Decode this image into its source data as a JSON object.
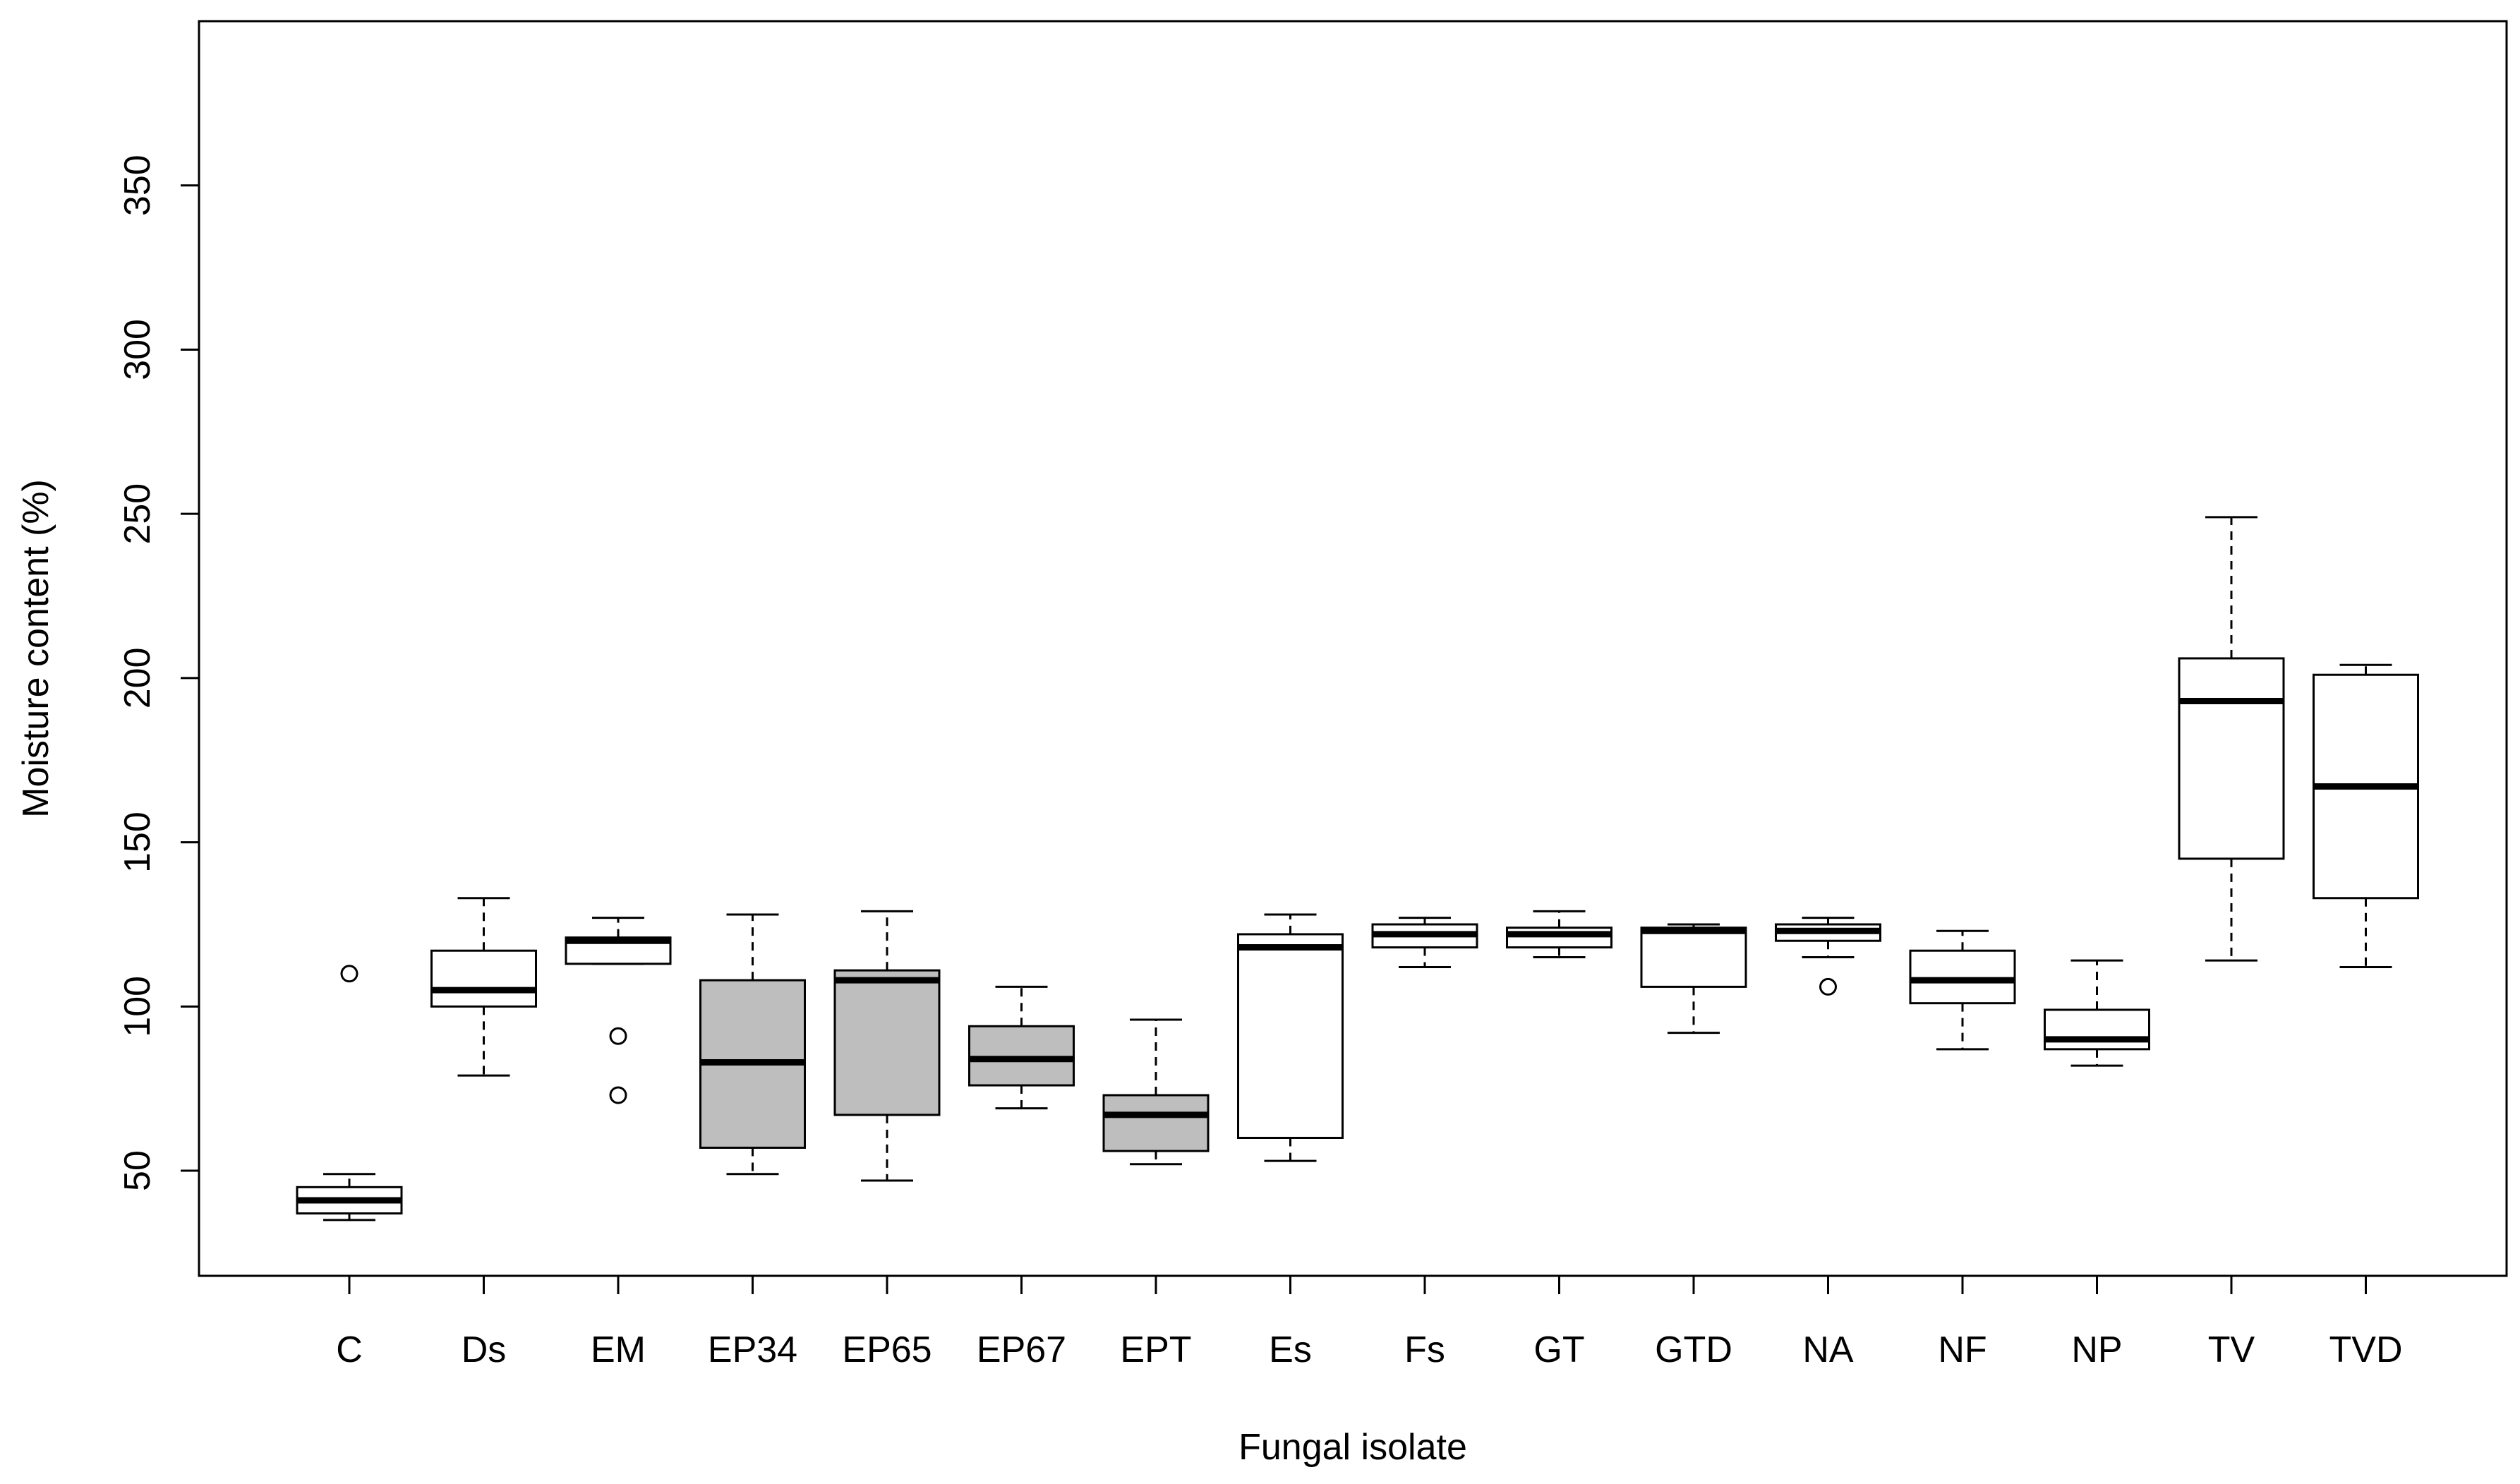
{
  "chart_data": {
    "type": "boxplot",
    "title": "",
    "xlabel": "Fungal isolate",
    "ylabel": "Moisture content (%)",
    "ylim": [
      18,
      400
    ],
    "yticks": [
      50,
      100,
      150,
      200,
      250,
      300,
      350
    ],
    "colors": {
      "white": "#ffffff",
      "grey": "#bebebe",
      "line": "#000000"
    },
    "boxes": [
      {
        "label": "C",
        "fill": "white",
        "whisker_low": 35,
        "q1": 37,
        "median": 41,
        "q3": 45,
        "whisker_high": 49,
        "outliers": [
          110
        ]
      },
      {
        "label": "Ds",
        "fill": "white",
        "whisker_low": 79,
        "q1": 100,
        "median": 105,
        "q3": 117,
        "whisker_high": 133,
        "outliers": []
      },
      {
        "label": "EM",
        "fill": "white",
        "whisker_low": 113,
        "q1": 113,
        "median": 120,
        "q3": 121,
        "whisker_high": 127,
        "outliers": [
          91,
          73
        ]
      },
      {
        "label": "EP34",
        "fill": "grey",
        "whisker_low": 49,
        "q1": 57,
        "median": 83,
        "q3": 108,
        "whisker_high": 128,
        "outliers": []
      },
      {
        "label": "EP65",
        "fill": "grey",
        "whisker_low": 47,
        "q1": 67,
        "median": 108,
        "q3": 111,
        "whisker_high": 129,
        "outliers": []
      },
      {
        "label": "EP67",
        "fill": "grey",
        "whisker_low": 69,
        "q1": 76,
        "median": 84,
        "q3": 94,
        "whisker_high": 106,
        "outliers": []
      },
      {
        "label": "EPT",
        "fill": "grey",
        "whisker_low": 52,
        "q1": 56,
        "median": 67,
        "q3": 73,
        "whisker_high": 96,
        "outliers": []
      },
      {
        "label": "Es",
        "fill": "white",
        "whisker_low": 53,
        "q1": 60,
        "median": 118,
        "q3": 122,
        "whisker_high": 128,
        "outliers": []
      },
      {
        "label": "Fs",
        "fill": "white",
        "whisker_low": 112,
        "q1": 118,
        "median": 122,
        "q3": 125,
        "whisker_high": 127,
        "outliers": []
      },
      {
        "label": "GT",
        "fill": "white",
        "whisker_low": 115,
        "q1": 118,
        "median": 122,
        "q3": 124,
        "whisker_high": 129,
        "outliers": []
      },
      {
        "label": "GTD",
        "fill": "white",
        "whisker_low": 92,
        "q1": 106,
        "median": 123,
        "q3": 124,
        "whisker_high": 125,
        "outliers": []
      },
      {
        "label": "NA",
        "fill": "white",
        "whisker_low": 115,
        "q1": 120,
        "median": 123,
        "q3": 125,
        "whisker_high": 127,
        "outliers": [
          106
        ]
      },
      {
        "label": "NF",
        "fill": "white",
        "whisker_low": 87,
        "q1": 101,
        "median": 108,
        "q3": 117,
        "whisker_high": 123,
        "outliers": []
      },
      {
        "label": "NP",
        "fill": "white",
        "whisker_low": 82,
        "q1": 87,
        "median": 90,
        "q3": 99,
        "whisker_high": 114,
        "outliers": []
      },
      {
        "label": "TV",
        "fill": "white",
        "whisker_low": 114,
        "q1": 145,
        "median": 193,
        "q3": 206,
        "whisker_high": 249,
        "outliers": []
      },
      {
        "label": "TVD",
        "fill": "white",
        "whisker_low": 112,
        "q1": 133,
        "median": 167,
        "q3": 201,
        "whisker_high": 204,
        "outliers": []
      }
    ]
  }
}
